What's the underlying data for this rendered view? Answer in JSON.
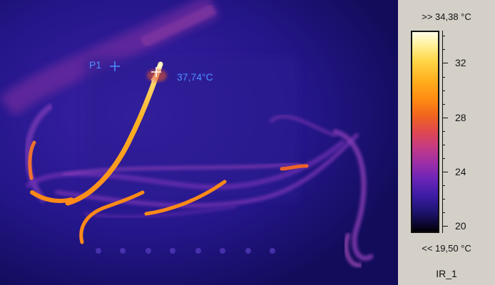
{
  "marker": {
    "label": "P1",
    "temperature": "37,74°C",
    "color": "#4f8fff"
  },
  "scale": {
    "max_label": ">> 34,38 °C",
    "min_label": "<< 19,50 °C",
    "ticks": [
      {
        "value": 32,
        "label": "32"
      },
      {
        "value": 28,
        "label": "28"
      },
      {
        "value": 24,
        "label": "24"
      },
      {
        "value": 20,
        "label": "20"
      }
    ],
    "palette": [
      "#000000",
      "#1e1470",
      "#6a24b8",
      "#c43a86",
      "#f0641e",
      "#ffb01e",
      "#fff2a0",
      "#fffbe8"
    ]
  },
  "image_name": "IR_1"
}
